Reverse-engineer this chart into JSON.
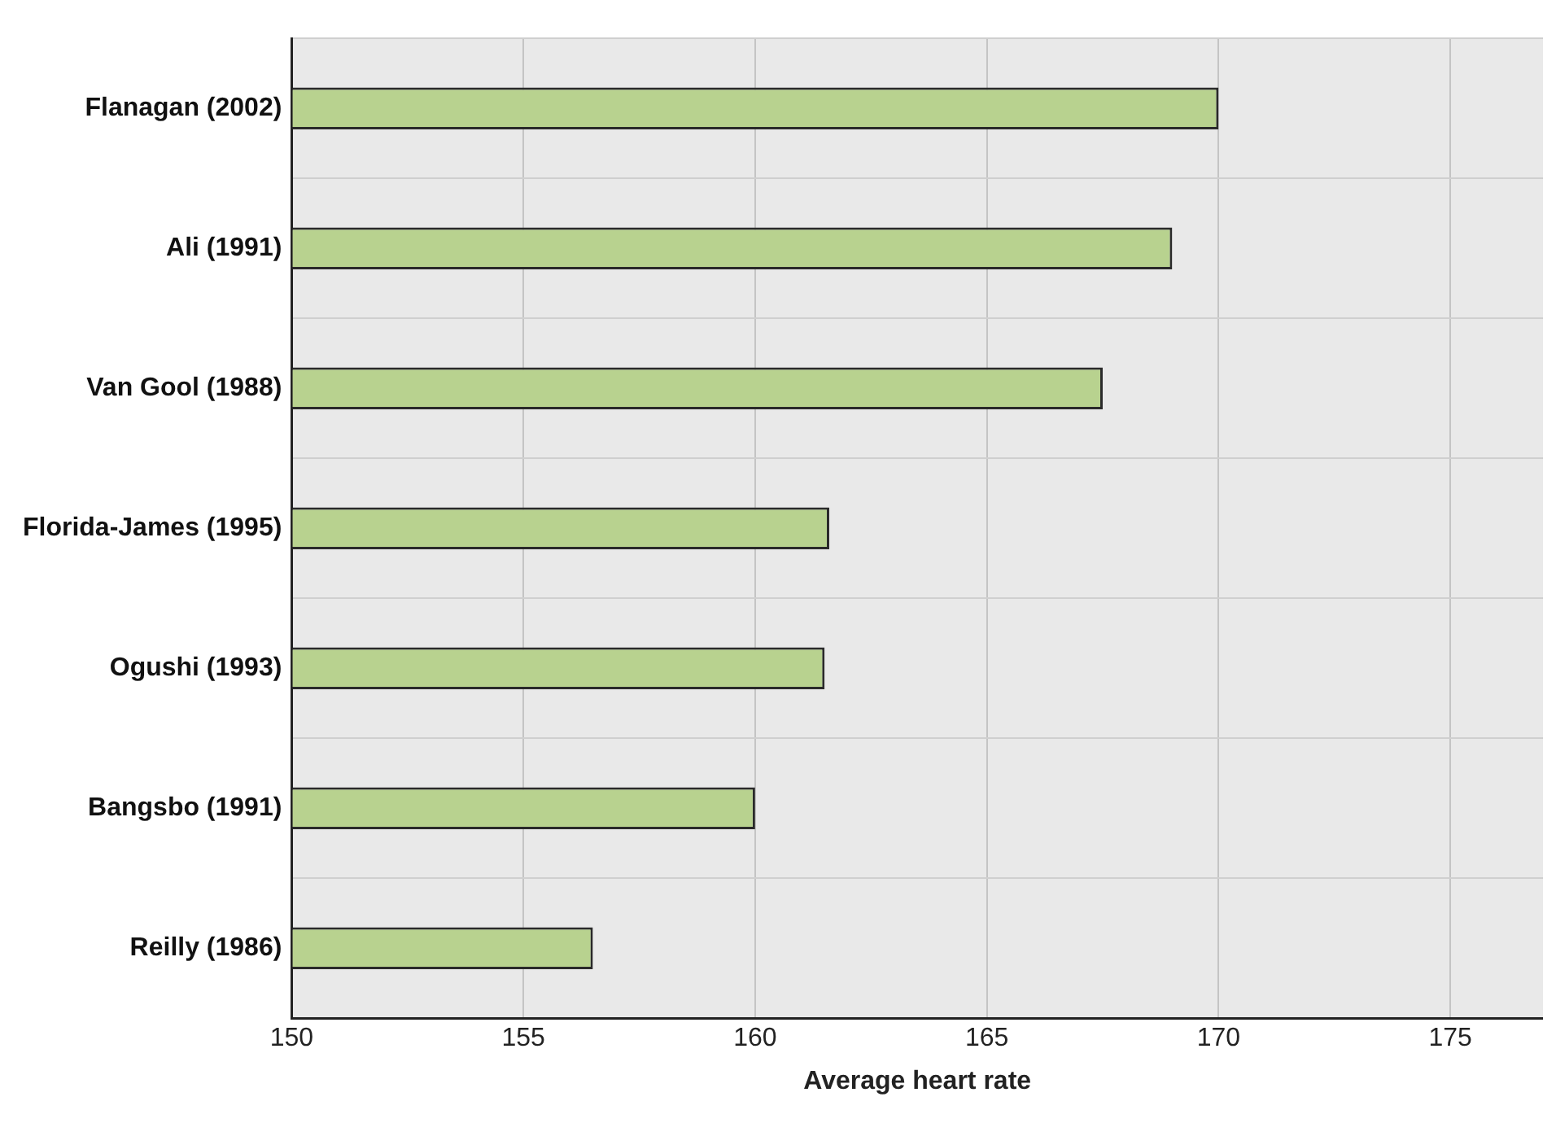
{
  "chart_data": {
    "type": "bar",
    "orientation": "horizontal",
    "xlabel": "Average heart rate",
    "categories": [
      "Flanagan (2002)",
      "Ali (1991)",
      "Van Gool (1988)",
      "Florida-James (1995)",
      "Ogushi (1993)",
      "Bangsbo (1991)",
      "Reilly (1986)"
    ],
    "values": [
      170.0,
      169.0,
      167.5,
      161.6,
      161.5,
      160.0,
      156.5
    ],
    "color": "#b8d28f",
    "xlim": [
      150,
      177
    ],
    "xticks": [
      150,
      155,
      160,
      165,
      170,
      175
    ],
    "grid": true,
    "legend": false
  }
}
